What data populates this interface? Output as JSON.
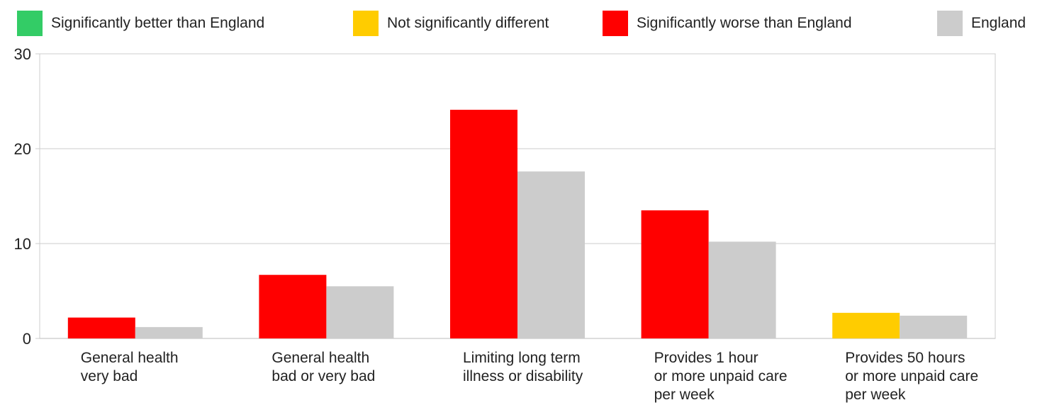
{
  "legend": {
    "items": [
      {
        "label": "Significantly better than England",
        "color": "#33cc66"
      },
      {
        "label": "Not significantly different",
        "color": "#ffcc00"
      },
      {
        "label": "Significantly worse than England",
        "color": "#ff0000"
      },
      {
        "label": "England",
        "color": "#cccccc"
      }
    ]
  },
  "chart_data": {
    "type": "bar",
    "categories": [
      [
        "General health",
        "very bad"
      ],
      [
        "General health",
        "bad or very bad"
      ],
      [
        "Limiting long term",
        "illness or disability"
      ],
      [
        "Provides 1 hour",
        "or more unpaid care",
        "per week"
      ],
      [
        "Provides 50 hours",
        "or more unpaid care",
        "per week"
      ]
    ],
    "series": [
      {
        "values": [
          2.2,
          6.7,
          24.1,
          13.5,
          2.7
        ],
        "colors": [
          "#ff0000",
          "#ff0000",
          "#ff0000",
          "#ff0000",
          "#ffcc00"
        ]
      },
      {
        "name": "England",
        "values": [
          1.2,
          5.5,
          17.6,
          10.2,
          2.4
        ],
        "colors": [
          "#cccccc",
          "#cccccc",
          "#cccccc",
          "#cccccc",
          "#cccccc"
        ]
      }
    ],
    "ylim": [
      0,
      30
    ],
    "yticks": [
      "0",
      "10",
      "20",
      "30"
    ],
    "grid": true,
    "legend_position": "top"
  }
}
